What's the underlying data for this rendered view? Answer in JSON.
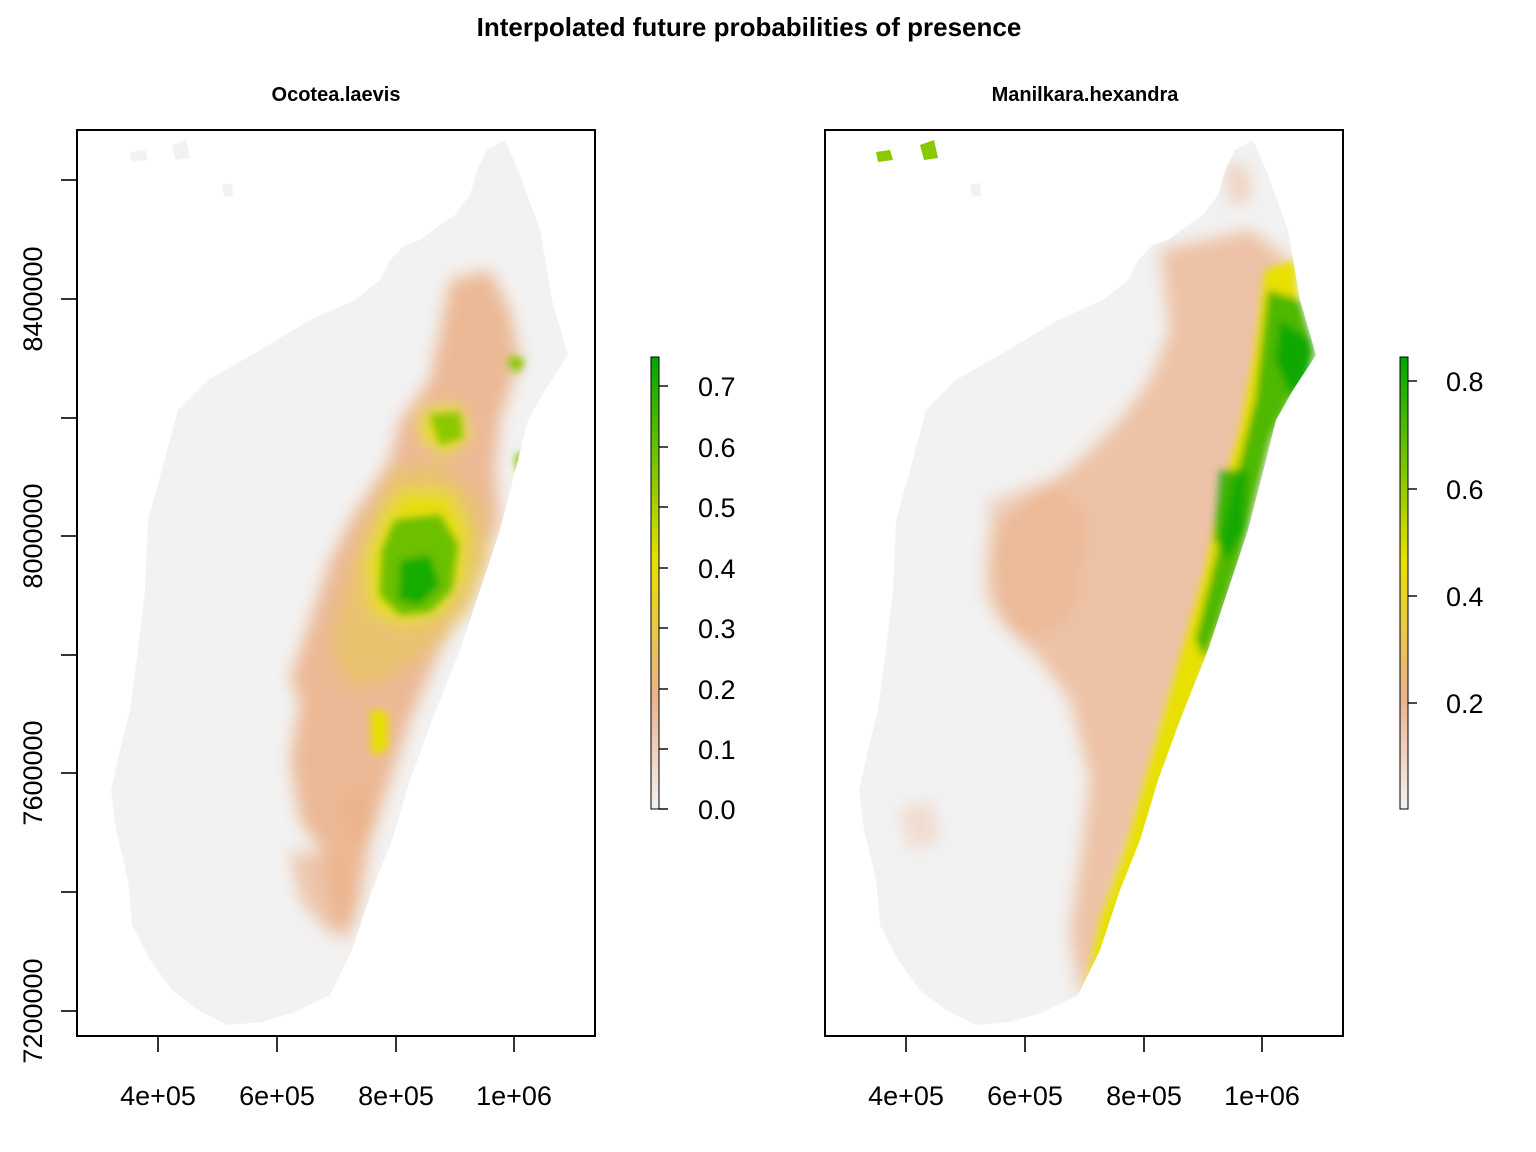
{
  "figure": {
    "title": "Interpolated future probabilities of presence"
  },
  "panels": [
    {
      "title": "Ocotea.laevis",
      "x_ticks": [
        "4e+05",
        "6e+05",
        "8e+05",
        "1e+06"
      ],
      "y_ticks": [
        "7200000",
        "7600000",
        "8000000",
        "8400000"
      ],
      "legend_ticks": [
        "0.0",
        "0.1",
        "0.2",
        "0.3",
        "0.4",
        "0.5",
        "0.6",
        "0.7"
      ],
      "legend_range": [
        0,
        0.75
      ]
    },
    {
      "title": "Manilkara.hexandra",
      "x_ticks": [
        "4e+05",
        "6e+05",
        "8e+05",
        "1e+06"
      ],
      "y_ticks": [],
      "legend_ticks": [
        "0.2",
        "0.4",
        "0.6",
        "0.8"
      ],
      "legend_range": [
        0,
        0.85
      ]
    }
  ],
  "colors": {
    "background_cell": "#f2f2f2",
    "low": "#ebb28c",
    "mid": "#e7e000",
    "high": "#00a600",
    "frame": "#000000"
  }
}
